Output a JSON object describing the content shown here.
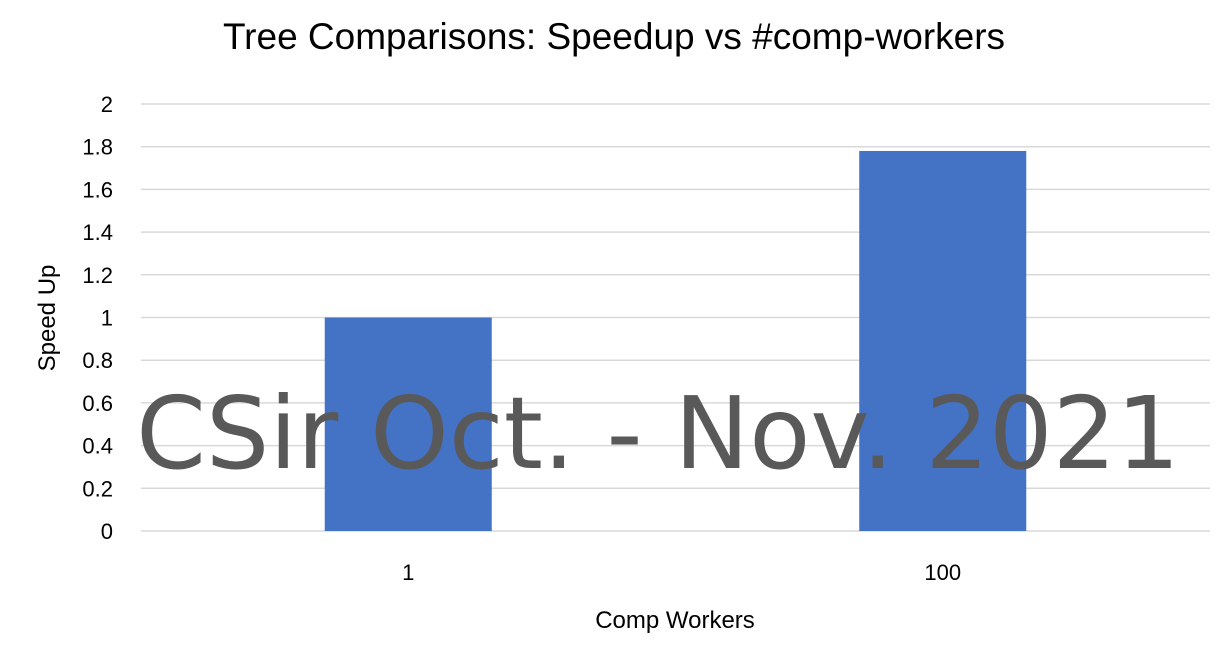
{
  "chart_data": {
    "type": "bar",
    "title": "Tree Comparisons: Speedup vs #comp-workers",
    "xlabel": "Comp Workers",
    "ylabel": "Speed Up",
    "categories": [
      "1",
      "100"
    ],
    "values": [
      1,
      1.78
    ],
    "ylim": [
      0,
      2
    ],
    "yticks": [
      "0",
      "0.2",
      "0.4",
      "0.6",
      "0.8",
      "1",
      "1.2",
      "1.4",
      "1.6",
      "1.8",
      "2"
    ],
    "grid": true,
    "legend": "none",
    "bar_color": "#4472c4"
  },
  "watermark": "CSir Oct. - Nov. 2021"
}
